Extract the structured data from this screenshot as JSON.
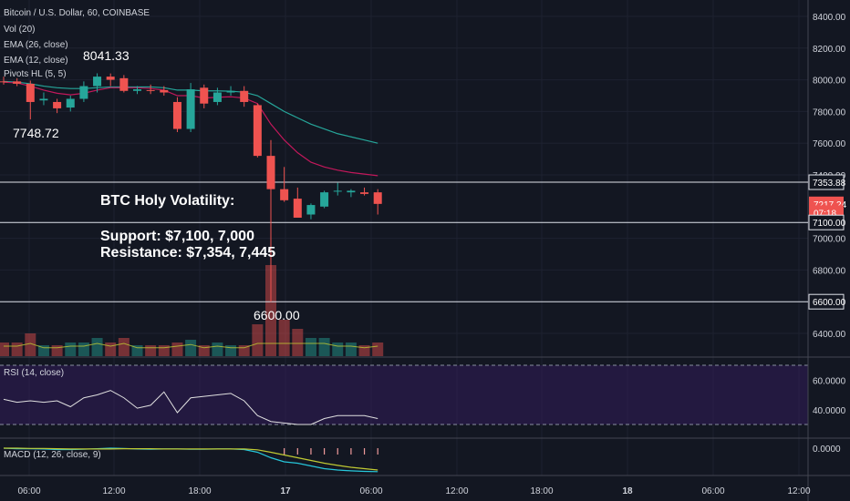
{
  "header": {
    "symbol_line": "Bitcoin / U.S. Dollar, 60, COINBASE",
    "indicators": [
      "Vol (20)",
      "EMA (26, close)",
      "EMA (12, close)",
      "Pivots HL (5, 5)"
    ]
  },
  "annotations": {
    "pivot_high": "8041.33",
    "pivot_low": "7748.72",
    "pivot_low2": "6600.00",
    "title": "BTC Holy Volatility:",
    "support": "Support: $7,100, 7,000",
    "resistance": "Resistance: $7,354, 7,445"
  },
  "price_axis": {
    "ticks": [
      "8400.00",
      "8200.00",
      "8000.00",
      "7800.00",
      "7600.00",
      "7400.00",
      "7000.00",
      "6800.00",
      "6400.00"
    ],
    "tick_values": [
      8400,
      8200,
      8000,
      7800,
      7600,
      7400,
      7000,
      6800,
      6400
    ],
    "tags": [
      {
        "text": "7353.88",
        "value": 7353.88,
        "style": "outline"
      },
      {
        "text": "7217.24",
        "value": 7217.24,
        "style": "red"
      },
      {
        "text": "07:18",
        "value": 7162,
        "style": "red"
      },
      {
        "text": "7100.00",
        "value": 7100,
        "style": "outline"
      },
      {
        "text": "6600.00",
        "value": 6600,
        "style": "outline"
      }
    ]
  },
  "rsi_panel": {
    "label": "RSI (14, close)",
    "ticks": [
      "60.0000",
      "40.0000"
    ],
    "tick_values": [
      60,
      40
    ]
  },
  "macd_panel": {
    "label": "MACD (12, 26, close, 9)",
    "ticks": [
      "0.0000"
    ]
  },
  "time_axis": {
    "labels": [
      "06:00",
      "12:00",
      "18:00",
      "17",
      "06:00",
      "12:00",
      "18:00",
      "18",
      "06:00",
      "12:00"
    ]
  },
  "colors": {
    "background": "#131722",
    "up": "#26a69a",
    "down": "#ef5350",
    "ema26": "#26a69a",
    "ema12": "#c2185b",
    "rsi_band": "#311b5a",
    "rsi_line": "#e0e0e0",
    "text": "#d1d4dc"
  },
  "chart_data": {
    "type": "candlestick",
    "title": "Bitcoin / U.S. Dollar, 60, COINBASE",
    "ylim": [
      6300,
      8500
    ],
    "horizontal_levels": [
      7353.88,
      7100,
      6600
    ],
    "candles": [
      {
        "x": 0,
        "o": 7990,
        "h": 8020,
        "l": 7970,
        "c": 7985
      },
      {
        "x": 1,
        "o": 7990,
        "h": 8010,
        "l": 7960,
        "c": 7975
      },
      {
        "x": 2,
        "o": 7975,
        "h": 7995,
        "l": 7750,
        "c": 7860
      },
      {
        "x": 3,
        "o": 7870,
        "h": 7920,
        "l": 7840,
        "c": 7880
      },
      {
        "x": 4,
        "o": 7860,
        "h": 7880,
        "l": 7790,
        "c": 7820
      },
      {
        "x": 5,
        "o": 7825,
        "h": 7900,
        "l": 7800,
        "c": 7880
      },
      {
        "x": 6,
        "o": 7880,
        "h": 7990,
        "l": 7860,
        "c": 7960
      },
      {
        "x": 7,
        "o": 7960,
        "h": 8041,
        "l": 7920,
        "c": 8020
      },
      {
        "x": 8,
        "o": 8020,
        "h": 8040,
        "l": 7960,
        "c": 8000
      },
      {
        "x": 9,
        "o": 8010,
        "h": 8030,
        "l": 7920,
        "c": 7930
      },
      {
        "x": 10,
        "o": 7930,
        "h": 7960,
        "l": 7910,
        "c": 7940
      },
      {
        "x": 11,
        "o": 7935,
        "h": 7970,
        "l": 7910,
        "c": 7930
      },
      {
        "x": 12,
        "o": 7935,
        "h": 7960,
        "l": 7900,
        "c": 7920
      },
      {
        "x": 13,
        "o": 7860,
        "h": 7890,
        "l": 7670,
        "c": 7690
      },
      {
        "x": 14,
        "o": 7690,
        "h": 7980,
        "l": 7670,
        "c": 7940
      },
      {
        "x": 15,
        "o": 7950,
        "h": 7970,
        "l": 7820,
        "c": 7850
      },
      {
        "x": 16,
        "o": 7860,
        "h": 7950,
        "l": 7840,
        "c": 7920
      },
      {
        "x": 17,
        "o": 7920,
        "h": 7960,
        "l": 7900,
        "c": 7930
      },
      {
        "x": 18,
        "o": 7930,
        "h": 7960,
        "l": 7830,
        "c": 7860
      },
      {
        "x": 19,
        "o": 7840,
        "h": 7850,
        "l": 7510,
        "c": 7520
      },
      {
        "x": 20,
        "o": 7520,
        "h": 7620,
        "l": 6600,
        "c": 7310
      },
      {
        "x": 21,
        "o": 7310,
        "h": 7450,
        "l": 7230,
        "c": 7240
      },
      {
        "x": 22,
        "o": 7250,
        "h": 7320,
        "l": 7140,
        "c": 7130
      },
      {
        "x": 23,
        "o": 7150,
        "h": 7220,
        "l": 7120,
        "c": 7210
      },
      {
        "x": 24,
        "o": 7200,
        "h": 7300,
        "l": 7190,
        "c": 7290
      },
      {
        "x": 25,
        "o": 7300,
        "h": 7350,
        "l": 7270,
        "c": 7300
      },
      {
        "x": 26,
        "o": 7290,
        "h": 7310,
        "l": 7260,
        "c": 7300
      },
      {
        "x": 27,
        "o": 7290,
        "h": 7320,
        "l": 7270,
        "c": 7280
      },
      {
        "x": 28,
        "o": 7290,
        "h": 7310,
        "l": 7150,
        "c": 7217
      }
    ],
    "ema26": [
      7990,
      7985,
      7975,
      7960,
      7950,
      7945,
      7945,
      7950,
      7955,
      7955,
      7955,
      7955,
      7950,
      7935,
      7935,
      7930,
      7930,
      7928,
      7922,
      7900,
      7850,
      7800,
      7760,
      7720,
      7690,
      7660,
      7640,
      7620,
      7600
    ],
    "ema12": [
      7985,
      7980,
      7960,
      7935,
      7915,
      7905,
      7915,
      7935,
      7950,
      7950,
      7950,
      7945,
      7935,
      7900,
      7900,
      7885,
      7890,
      7893,
      7885,
      7850,
      7720,
      7620,
      7540,
      7480,
      7450,
      7430,
      7415,
      7405,
      7395
    ],
    "rsi": [
      47,
      45,
      46,
      45,
      46,
      42,
      48,
      50,
      53,
      48,
      41,
      43,
      52,
      38,
      48,
      49,
      50,
      51,
      46,
      36,
      32,
      31,
      30,
      30,
      34,
      36,
      36,
      36,
      34
    ],
    "volume": [
      0.15,
      0.15,
      0.25,
      0.12,
      0.12,
      0.15,
      0.15,
      0.2,
      0.15,
      0.2,
      0.12,
      0.12,
      0.12,
      0.15,
      0.18,
      0.12,
      0.15,
      0.12,
      0.12,
      0.35,
      1.0,
      0.4,
      0.3,
      0.2,
      0.2,
      0.15,
      0.15,
      0.12,
      0.15
    ]
  }
}
